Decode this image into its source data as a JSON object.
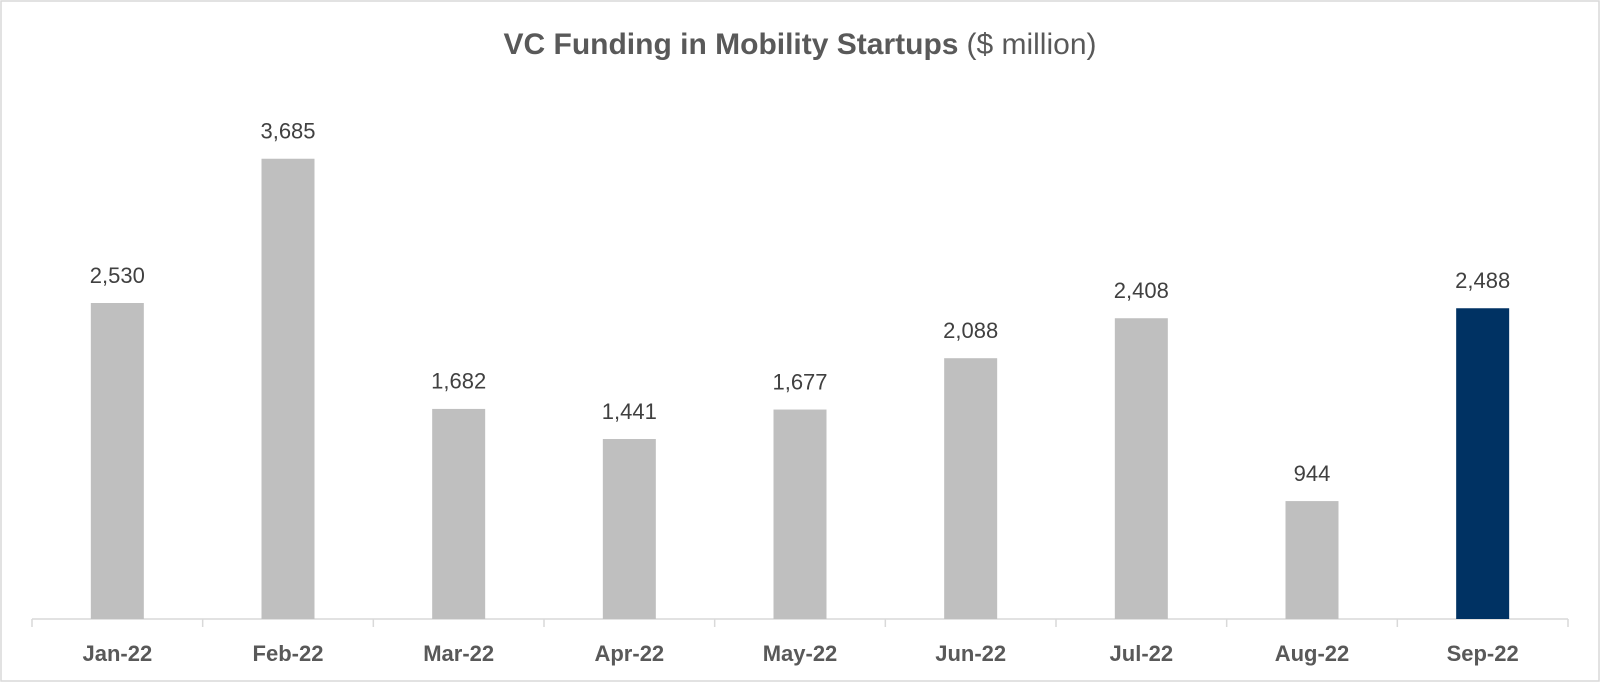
{
  "chart_data": {
    "type": "bar",
    "title": "VC Funding in Mobility Startups",
    "subtitle": "($ million)",
    "categories": [
      "Jan-22",
      "Feb-22",
      "Mar-22",
      "Apr-22",
      "May-22",
      "Jun-22",
      "Jul-22",
      "Aug-22",
      "Sep-22"
    ],
    "values": [
      2530,
      3685,
      1682,
      1441,
      1677,
      2088,
      2408,
      944,
      2488
    ],
    "value_labels": [
      "2,530",
      "3,685",
      "1,682",
      "1,441",
      "1,677",
      "2,088",
      "2,408",
      "944",
      "2,488"
    ],
    "colors": [
      "#bfbfbf",
      "#bfbfbf",
      "#bfbfbf",
      "#bfbfbf",
      "#bfbfbf",
      "#bfbfbf",
      "#bfbfbf",
      "#bfbfbf",
      "#003263"
    ]
  }
}
